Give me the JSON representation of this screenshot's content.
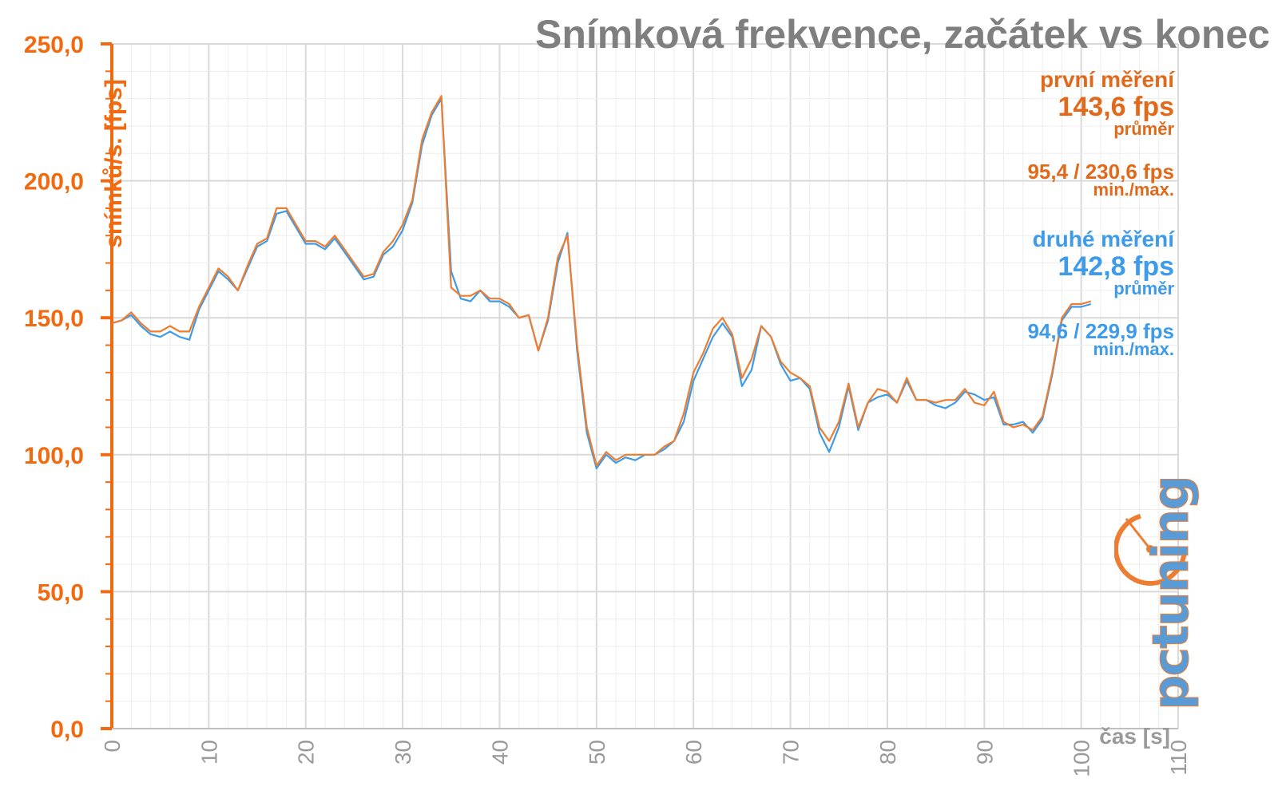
{
  "chart_data": {
    "type": "line",
    "title": "Snímková frekvence, začátek vs konec",
    "ylabel": "snímků/s. [fps]",
    "xlabel": "čas [s]",
    "xlim": [
      0,
      110
    ],
    "ylim": [
      0,
      250
    ],
    "x_ticks": [
      "0",
      "10",
      "20",
      "30",
      "40",
      "50",
      "60",
      "70",
      "80",
      "90",
      "100",
      "110"
    ],
    "y_ticks": [
      "0,0",
      "50,0",
      "100,0",
      "150,0",
      "200,0",
      "250,0"
    ],
    "grid": true,
    "x": [
      0,
      1,
      2,
      3,
      4,
      5,
      6,
      7,
      8,
      9,
      10,
      11,
      12,
      13,
      14,
      15,
      16,
      17,
      18,
      19,
      20,
      21,
      22,
      23,
      24,
      25,
      26,
      27,
      28,
      29,
      30,
      31,
      32,
      33,
      34,
      35,
      36,
      37,
      38,
      39,
      40,
      41,
      42,
      43,
      44,
      45,
      46,
      47,
      48,
      49,
      50,
      51,
      52,
      53,
      54,
      55,
      56,
      57,
      58,
      59,
      60,
      61,
      62,
      63,
      64,
      65,
      66,
      67,
      68,
      69,
      70,
      71,
      72,
      73,
      74,
      75,
      76,
      77,
      78,
      79,
      80,
      81,
      82,
      83,
      84,
      85,
      86,
      87,
      88,
      89,
      90,
      91,
      92,
      93,
      94,
      95,
      96,
      97,
      98,
      99,
      100,
      101
    ],
    "series": [
      {
        "name": "první měření",
        "color": "#ed7d31",
        "values": [
          148,
          149,
          152,
          148,
          145,
          145,
          147,
          145,
          145,
          154,
          161,
          168,
          165,
          160,
          169,
          177,
          179,
          190,
          190,
          184,
          178,
          178,
          176,
          180,
          175,
          170,
          165,
          166,
          174,
          178,
          184,
          193,
          215,
          225,
          231,
          161,
          158,
          158,
          160,
          157,
          157,
          155,
          150,
          151,
          138,
          150,
          172,
          180,
          140,
          110,
          96,
          101,
          98,
          100,
          100,
          100,
          100,
          103,
          105,
          115,
          130,
          137,
          146,
          150,
          144,
          128,
          135,
          147,
          143,
          134,
          130,
          128,
          125,
          110,
          105,
          112,
          126,
          110,
          119,
          124,
          123,
          119,
          128,
          120,
          120,
          119,
          120,
          120,
          124,
          119,
          118,
          123,
          112,
          110,
          111,
          109,
          114,
          130,
          150,
          155,
          155,
          156
        ],
        "mean_label": "143,6 fps",
        "mean_sub": "průměr",
        "minmax_label": "95,4 / 230,6 fps",
        "minmax_sub": "min./max."
      },
      {
        "name": "druhé měření",
        "color": "#3d9be9",
        "values": [
          148,
          149,
          151,
          147,
          144,
          143,
          145,
          143,
          142,
          153,
          160,
          167,
          164,
          160,
          168,
          176,
          178,
          188,
          189,
          183,
          177,
          177,
          175,
          179,
          174,
          169,
          164,
          165,
          173,
          176,
          182,
          192,
          213,
          224,
          230,
          167,
          157,
          156,
          160,
          156,
          156,
          154,
          150,
          151,
          138,
          149,
          170,
          181,
          138,
          108,
          95,
          100,
          97,
          99,
          98,
          100,
          100,
          102,
          105,
          112,
          127,
          135,
          143,
          148,
          143,
          125,
          131,
          147,
          143,
          133,
          127,
          128,
          124,
          108,
          101,
          110,
          125,
          109,
          119,
          121,
          122,
          119,
          127,
          120,
          120,
          118,
          117,
          119,
          123,
          122,
          120,
          121,
          111,
          111,
          112,
          108,
          113,
          129,
          149,
          154,
          154,
          155
        ],
        "mean_label": "142,8 fps",
        "mean_sub": "průměr",
        "minmax_label": "94,6 / 229,9 fps",
        "minmax_sub": "min./max."
      }
    ],
    "axis_color": "#f26a10"
  },
  "logo_text": "pctuning"
}
